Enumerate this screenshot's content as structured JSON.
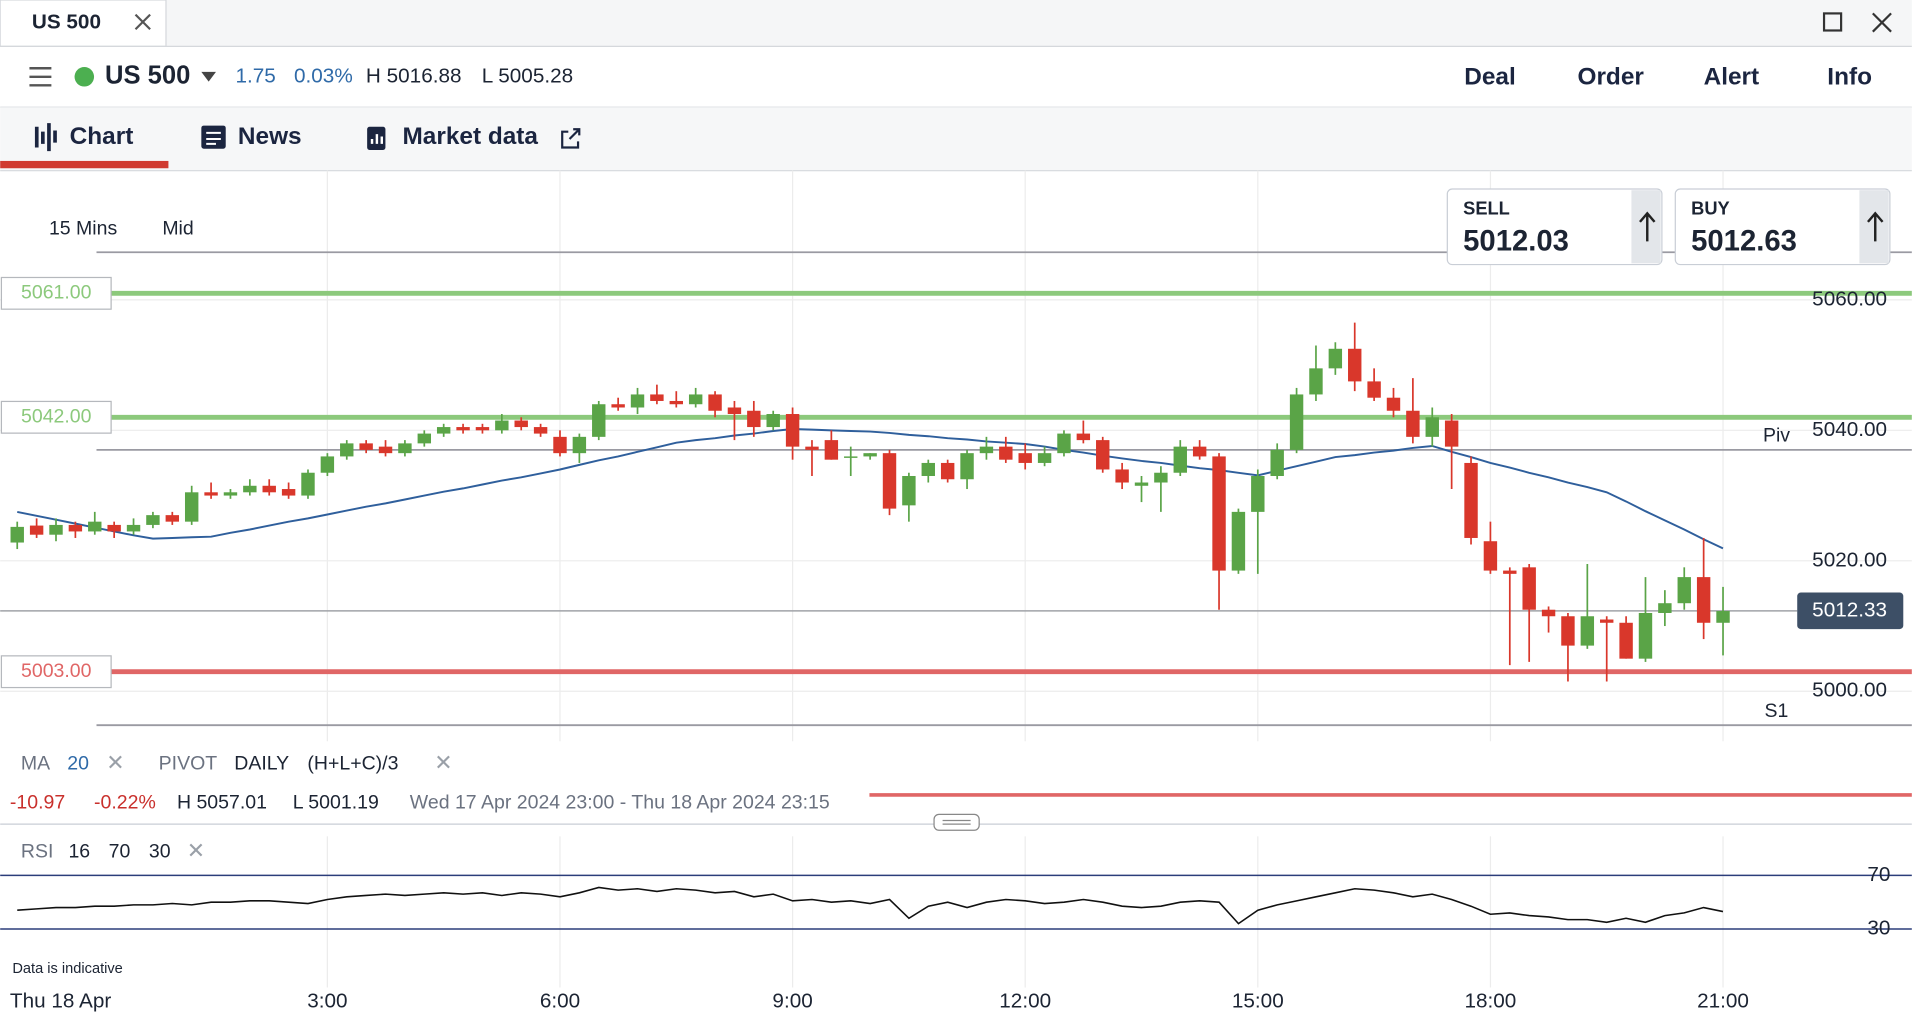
{
  "window": {
    "tab": "US 500"
  },
  "header": {
    "instrument": "US 500",
    "change": "1.75",
    "change_pct": "0.03%",
    "high": "H 5016.88",
    "low": "L 5005.28",
    "actions": [
      "Deal",
      "Order",
      "Alert",
      "Info"
    ]
  },
  "tabs": [
    "Chart",
    "News",
    "Market data"
  ],
  "chart_settings": {
    "interval": "15 Mins",
    "price_type": "Mid"
  },
  "quote": {
    "sell_label": "SELL",
    "sell": "5012.03",
    "buy_label": "BUY",
    "buy": "5012.63"
  },
  "chart_data": {
    "type": "candlestick",
    "up_color": "#5aa447",
    "down_color": "#d9372b",
    "open": [
      5022.8,
      5025.4,
      5024,
      5025.5,
      5024.5,
      5025.5,
      5024.5,
      5025.5,
      5027,
      5026,
      5030.5,
      5030,
      5030.5,
      5031.5,
      5031,
      5030,
      5033.5,
      5036,
      5038,
      5037.5,
      5036.5,
      5038,
      5039.5,
      5040.5,
      5040.5,
      5040,
      5041.5,
      5040.5,
      5039,
      5036.5,
      5039,
      5044,
      5043.5,
      5045.5,
      5044.5,
      5044,
      5045.5,
      5043.5,
      5043,
      5040.5,
      5042.5,
      5037.5,
      5038.5,
      5036,
      5036,
      5036.5,
      5028.5,
      5033,
      5035,
      5032.5,
      5036.5,
      5037.5,
      5036.5,
      5035,
      5036.5,
      5039.5,
      5038.5,
      5034,
      5031.5,
      5032,
      5033.5,
      5037.5,
      5036,
      5018.5,
      5027.5,
      5033,
      5037,
      5045.5,
      5049.5,
      5052.5,
      5047.5,
      5045,
      5043,
      5039,
      5041.5,
      5035,
      5023,
      5018.5,
      5019,
      5012.5,
      5011.5,
      5007,
      5011,
      5010.5,
      5005,
      5012,
      5013.5,
      5017.5,
      5010.5
    ],
    "high": [
      5026,
      5026.5,
      5026.5,
      5026,
      5027.5,
      5026,
      5026.5,
      5027.5,
      5027.5,
      5031.5,
      5032,
      5031,
      5032.5,
      5032.5,
      5032,
      5034,
      5036.5,
      5038.5,
      5038.5,
      5038.5,
      5038.5,
      5040,
      5041,
      5041,
      5041,
      5042.5,
      5042,
      5041,
      5040,
      5039.5,
      5044.5,
      5045,
      5046.5,
      5047,
      5046,
      5046.5,
      5046,
      5044.5,
      5044.5,
      5043,
      5043.5,
      5038.5,
      5040,
      5037.5,
      5036.5,
      5037,
      5033.5,
      5035.5,
      5035.5,
      5037,
      5039,
      5039,
      5038,
      5037.5,
      5040,
      5041.5,
      5039,
      5035,
      5033,
      5034.5,
      5038.5,
      5038.5,
      5036.5,
      5028,
      5034,
      5038,
      5046.5,
      5053,
      5053.5,
      5056.5,
      5049.5,
      5046.5,
      5048,
      5043.5,
      5042.5,
      5036,
      5026,
      5019,
      5019.5,
      5013,
      5012,
      5019.5,
      5011.5,
      5011.5,
      5017.5,
      5015.5,
      5019,
      5023.5,
      5016
    ],
    "low": [
      5021.8,
      5023.5,
      5023,
      5023.5,
      5024,
      5023.5,
      5024,
      5025,
      5025.5,
      5025.5,
      5029.5,
      5029.5,
      5030,
      5030,
      5029.5,
      5029.5,
      5033,
      5035.5,
      5036.5,
      5036,
      5036,
      5037.5,
      5039,
      5039.5,
      5039.5,
      5039.5,
      5040,
      5039,
      5036,
      5035,
      5038.5,
      5043,
      5042.5,
      5044,
      5043.5,
      5043.5,
      5042,
      5038.5,
      5039,
      5040,
      5035.5,
      5033,
      5035.5,
      5033,
      5035.5,
      5027,
      5026,
      5032,
      5032,
      5031,
      5035.5,
      5035,
      5034,
      5034.5,
      5036,
      5038,
      5033.5,
      5031,
      5029,
      5027.5,
      5033,
      5035.5,
      5012.5,
      5018,
      5018,
      5032.5,
      5036.5,
      5044.5,
      5048.5,
      5046,
      5044.5,
      5042,
      5038,
      5037.5,
      5031,
      5022.5,
      5018,
      5004,
      5004.5,
      5009,
      5001.5,
      5006.5,
      5001.5,
      5005,
      5004.5,
      5010,
      5012.5,
      5008,
      5005.5
    ],
    "close": [
      5025.2,
      5024,
      5025.5,
      5024.5,
      5026,
      5024.5,
      5025.5,
      5027,
      5026,
      5030.5,
      5030,
      5030.5,
      5031.5,
      5030.5,
      5030,
      5033.5,
      5036,
      5038,
      5037,
      5036.5,
      5038,
      5039.5,
      5040.5,
      5040,
      5040,
      5041.5,
      5040.5,
      5039.5,
      5036.5,
      5039,
      5044,
      5043.5,
      5045.5,
      5044.5,
      5044,
      5045.5,
      5043,
      5042.5,
      5040.5,
      5042.5,
      5037.5,
      5037,
      5035.5,
      5036,
      5036.5,
      5028,
      5033,
      5035,
      5032.5,
      5036.5,
      5037.5,
      5035.5,
      5035,
      5036.5,
      5039.5,
      5038.5,
      5034,
      5032,
      5032,
      5033.5,
      5037.5,
      5036,
      5018.5,
      5027.5,
      5033,
      5037,
      5045.5,
      5049.5,
      5052.5,
      5047.5,
      5045,
      5043,
      5039,
      5042,
      5037.5,
      5023.5,
      5018.5,
      5018,
      5012.5,
      5011.5,
      5007,
      5011.5,
      5010.5,
      5005,
      5012,
      5013.5,
      5017.5,
      5010.5,
      5012.3
    ],
    "ma": {
      "color": "#2f5f9c",
      "values": [
        5027.5,
        5026.9,
        5026.3,
        5025.7,
        5025.1,
        5024.5,
        5023.9,
        5023.4,
        5023.5,
        5023.6,
        5023.7,
        5024.3,
        5024.8,
        5025.4,
        5026.0,
        5026.5,
        5027.1,
        5027.7,
        5028.3,
        5028.8,
        5029.4,
        5030.0,
        5030.6,
        5031.1,
        5031.7,
        5032.3,
        5032.8,
        5033.4,
        5034.0,
        5034.7,
        5035.4,
        5036.0,
        5036.7,
        5037.4,
        5038.1,
        5038.5,
        5038.8,
        5039.2,
        5039.5,
        5039.9,
        5040.2,
        5040.1,
        5040.0,
        5039.9,
        5039.8,
        5039.6,
        5039.3,
        5039.1,
        5038.8,
        5038.6,
        5038.3,
        5038.1,
        5037.9,
        5037.5,
        5037.0,
        5036.6,
        5036.1,
        5035.7,
        5035.3,
        5035.0,
        5034.6,
        5034.2,
        5033.9,
        5033.5,
        5033.1,
        5033.8,
        5034.5,
        5035.2,
        5035.9,
        5036.2,
        5036.6,
        5036.9,
        5037.3,
        5037.6,
        5036.7,
        5035.9,
        5035.0,
        5034.3,
        5033.5,
        5032.8,
        5032.0,
        5031.3,
        5030.5,
        5029.1,
        5027.6,
        5026.2,
        5024.8,
        5023.3,
        5021.9
      ]
    },
    "xlim": [
      -0.88,
      97.74
    ],
    "xticks": [
      {
        "value": 16,
        "label": "3:00"
      },
      {
        "value": 28,
        "label": "6:00"
      },
      {
        "value": 40,
        "label": "9:00"
      },
      {
        "value": 52,
        "label": "12:00"
      },
      {
        "value": 64,
        "label": "15:00"
      },
      {
        "value": 76,
        "label": "18:00"
      },
      {
        "value": 88,
        "label": "21:00"
      }
    ],
    "date_label": "Thu 18 Apr",
    "ylim": [
      4992.9,
      5079.8
    ],
    "yticks": [
      {
        "value": 5000,
        "label": "5000.00"
      },
      {
        "value": 5020,
        "label": "5020.00"
      },
      {
        "value": 5040,
        "label": "5040.00"
      },
      {
        "value": 5060,
        "label": "5060.00"
      }
    ],
    "grid": true,
    "levels": [
      {
        "value": 5061,
        "label": "5061.00",
        "color": "#8cc97c"
      },
      {
        "value": 5042,
        "label": "5042.00",
        "color": "#8cc97c"
      },
      {
        "value": 5003,
        "label": "5003.00",
        "color": "#e06666"
      }
    ],
    "pivots": [
      {
        "name": "Piv",
        "value": 5037
      },
      {
        "name": "S1",
        "value": 4994.8
      },
      {
        "value": 5067.3
      }
    ],
    "last_price": 5012.33,
    "rsi": {
      "color": "#111111",
      "ylim": [
        0,
        100
      ],
      "yticks": [
        30,
        70
      ],
      "values": [
        44,
        45,
        46,
        46,
        47,
        47,
        48,
        48,
        49,
        48,
        50,
        50,
        51,
        51,
        50,
        49,
        52,
        54,
        55,
        56,
        55,
        56,
        57,
        56,
        57,
        55,
        57,
        56,
        54,
        57,
        61,
        59,
        60,
        58,
        60,
        59,
        57,
        58,
        54,
        56,
        51,
        52,
        50,
        51,
        49,
        52,
        38,
        47,
        50,
        46,
        50,
        52,
        51,
        49,
        50,
        52,
        50,
        47,
        46,
        47,
        50,
        51,
        50,
        34,
        44,
        48,
        51,
        54,
        57,
        60,
        59,
        57,
        54,
        56,
        52,
        47,
        41,
        42,
        40,
        39,
        37,
        37,
        35,
        38,
        35,
        40,
        42,
        46,
        43
      ]
    }
  },
  "indicators": {
    "ma_label": "MA",
    "ma_period": "20",
    "pivot_label": "PIVOT",
    "pivot_period": "DAILY",
    "pivot_formula": "(H+L+C)/3"
  },
  "summary": {
    "change": "-10.97",
    "change_pct": "-0.22%",
    "high": "H 5057.01",
    "low": "L 5001.19",
    "range": "Wed 17 Apr 2024 23:00 - Thu 18 Apr 2024 23:15"
  },
  "rsi_header": {
    "label": "RSI",
    "period": "16",
    "upper": "70",
    "lower": "30"
  },
  "footer": {
    "note": "Data is indicative"
  }
}
